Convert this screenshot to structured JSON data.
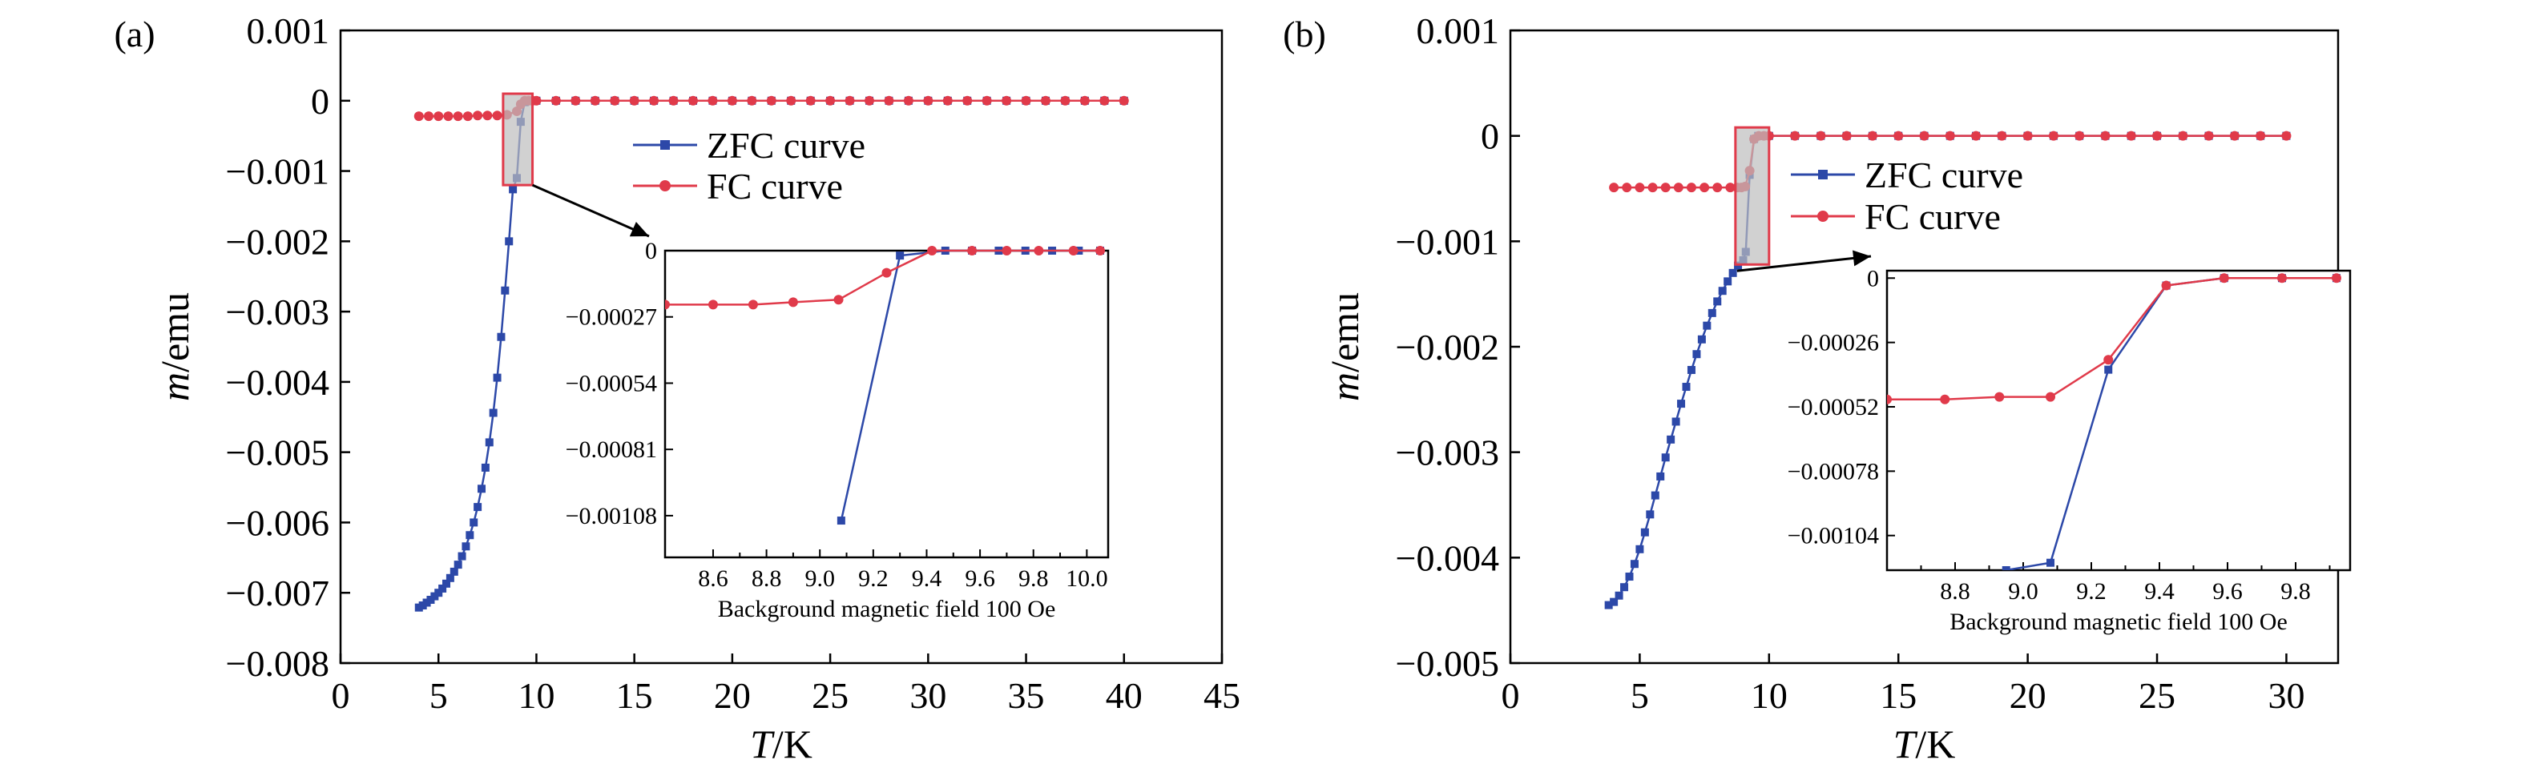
{
  "chart_data": [
    {
      "panel": "(a)",
      "type": "line",
      "xlabel_italic": "T",
      "xlabel_unit": "/K",
      "ylabel_italic": "m",
      "ylabel_unit": "/emu",
      "xlim": [
        0,
        45
      ],
      "ylim": [
        -0.008,
        0.001
      ],
      "xticks": [
        0,
        5,
        10,
        15,
        20,
        25,
        30,
        35,
        40,
        45
      ],
      "yticks": [
        0.001,
        0,
        -0.001,
        -0.002,
        -0.003,
        -0.004,
        -0.005,
        -0.006,
        -0.007,
        -0.008
      ],
      "ytick_labels": [
        "0.001",
        "0",
        "−0.001",
        "−0.002",
        "−0.003",
        "−0.004",
        "−0.005",
        "−0.006",
        "−0.007",
        "−0.008"
      ],
      "legend_position": "center-right",
      "highlight": {
        "x": [
          8.3,
          9.8
        ],
        "y": [
          -0.0012,
          0.0001
        ]
      },
      "series": [
        {
          "name": "ZFC curve",
          "color": "#2c48a8",
          "marker": "square",
          "x": [
            4.0,
            4.2,
            4.4,
            4.6,
            4.8,
            5.0,
            5.2,
            5.4,
            5.6,
            5.8,
            6.0,
            6.2,
            6.4,
            6.6,
            6.8,
            7.0,
            7.2,
            7.4,
            7.6,
            7.8,
            8.0,
            8.2,
            8.4,
            8.6,
            8.8,
            9.0,
            9.2,
            9.4,
            9.6,
            9.8,
            10.0,
            11,
            12,
            13,
            14,
            15,
            16,
            17,
            18,
            19,
            20,
            21,
            22,
            23,
            24,
            25,
            26,
            27,
            28,
            29,
            30,
            31,
            32,
            33,
            34,
            35,
            36,
            37,
            38,
            39,
            40
          ],
          "y": [
            -0.00721,
            -0.00718,
            -0.00714,
            -0.0071,
            -0.00705,
            -0.007,
            -0.00694,
            -0.00687,
            -0.00679,
            -0.0067,
            -0.0066,
            -0.00648,
            -0.00634,
            -0.00618,
            -0.006,
            -0.00578,
            -0.00552,
            -0.00522,
            -0.00486,
            -0.00444,
            -0.00394,
            -0.00336,
            -0.0027,
            -0.002,
            -0.00126,
            -0.0011,
            -0.0003,
            -2e-05,
            0.0,
            0.0,
            0.0,
            0.0,
            0.0,
            0.0,
            0.0,
            0.0,
            0.0,
            0.0,
            0.0,
            0.0,
            0.0,
            0.0,
            0.0,
            0.0,
            0.0,
            0.0,
            0.0,
            0.0,
            0.0,
            0.0,
            0.0,
            0.0,
            0.0,
            0.0,
            0.0,
            0.0,
            0.0,
            0.0,
            0.0,
            0.0,
            0.0
          ]
        },
        {
          "name": "FC curve",
          "color": "#e03a4a",
          "marker": "circle",
          "x": [
            4.0,
            4.5,
            5.0,
            5.5,
            6.0,
            6.5,
            7.0,
            7.5,
            8.0,
            8.5,
            9.0,
            9.2,
            9.4,
            9.6,
            9.8,
            10,
            11,
            12,
            13,
            14,
            15,
            16,
            17,
            18,
            19,
            20,
            21,
            22,
            23,
            24,
            25,
            26,
            27,
            28,
            29,
            30,
            31,
            32,
            33,
            34,
            35,
            36,
            37,
            38,
            39,
            40
          ],
          "y": [
            -0.00022,
            -0.00022,
            -0.00022,
            -0.00022,
            -0.00022,
            -0.00022,
            -0.00021,
            -0.00021,
            -0.00021,
            -0.0002,
            -0.00015,
            -5e-05,
            0.0,
            0.0,
            0.0,
            0.0,
            0.0,
            0.0,
            0.0,
            0.0,
            0.0,
            0.0,
            0.0,
            0.0,
            0.0,
            0.0,
            0.0,
            0.0,
            0.0,
            0.0,
            0.0,
            0.0,
            0.0,
            0.0,
            0.0,
            0.0,
            0.0,
            0.0,
            0.0,
            0.0,
            0.0,
            0.0,
            0.0,
            0.0,
            0.0,
            0.0
          ]
        }
      ],
      "inset": {
        "caption": "Background magnetic field 100 Oe",
        "xlim": [
          8.42,
          10.08
        ],
        "ylim": [
          -0.00125,
          0
        ],
        "xticks": [
          8.6,
          8.7,
          8.8,
          8.9,
          9.0,
          9.1,
          9.2,
          9.3,
          9.4,
          9.5,
          9.6,
          9.7,
          9.8,
          9.9,
          10.0
        ],
        "xtick_labels": [
          "8.6",
          "",
          "8.8",
          "",
          "9.0",
          "",
          "9.2",
          "",
          "9.4",
          "",
          "9.6",
          "",
          "9.8",
          "",
          "10.0"
        ],
        "yticks": [
          0,
          -0.00027,
          -0.00054,
          -0.00081,
          -0.00108
        ],
        "ytick_labels": [
          "0",
          "−0.00027",
          "−0.00054",
          "−0.00081",
          "−0.00108"
        ],
        "series": [
          {
            "name": "ZFC curve",
            "x": [
              9.08,
              9.3,
              9.47,
              9.57,
              9.67,
              9.77,
              9.87,
              9.97,
              10.05
            ],
            "y": [
              -0.0011,
              -2e-05,
              0.0,
              0.0,
              0.0,
              0.0,
              0.0,
              0.0,
              0.0
            ]
          },
          {
            "name": "FC curve",
            "x": [
              8.42,
              8.6,
              8.75,
              8.9,
              9.07,
              9.25,
              9.42,
              9.57,
              9.7,
              9.82,
              9.95,
              10.05
            ],
            "y": [
              -0.00022,
              -0.00022,
              -0.00022,
              -0.00021,
              -0.0002,
              -9e-05,
              0.0,
              0.0,
              0.0,
              0.0,
              0.0,
              0.0
            ]
          }
        ]
      }
    },
    {
      "panel": "(b)",
      "type": "line",
      "xlabel_italic": "T",
      "xlabel_unit": "/K",
      "ylabel_italic": "m",
      "ylabel_unit": "/emu",
      "xlim": [
        0,
        32
      ],
      "ylim": [
        -0.005,
        0.001
      ],
      "xticks": [
        0,
        5,
        10,
        15,
        20,
        25,
        30
      ],
      "yticks": [
        0.001,
        0,
        -0.001,
        -0.002,
        -0.003,
        -0.004,
        -0.005
      ],
      "ytick_labels": [
        "0.001",
        "0",
        "−0.001",
        "−0.002",
        "−0.003",
        "−0.004",
        "−0.005"
      ],
      "legend_position": "center-right",
      "highlight": {
        "x": [
          8.7,
          10.0
        ],
        "y": [
          -0.00122,
          8e-05
        ]
      },
      "series": [
        {
          "name": "ZFC curve",
          "color": "#2c48a8",
          "marker": "square",
          "x": [
            3.8,
            4.0,
            4.2,
            4.4,
            4.6,
            4.8,
            5.0,
            5.2,
            5.4,
            5.6,
            5.8,
            6.0,
            6.2,
            6.4,
            6.6,
            6.8,
            7.0,
            7.2,
            7.4,
            7.6,
            7.8,
            8.0,
            8.2,
            8.4,
            8.6,
            8.8,
            9.0,
            9.1,
            9.25,
            9.42,
            9.58,
            9.75,
            9.9,
            10,
            11,
            12,
            13,
            14,
            15,
            16,
            17,
            18,
            19,
            20,
            21,
            22,
            23,
            24,
            25,
            26,
            27,
            28,
            29,
            30
          ],
          "y": [
            -0.00445,
            -0.00442,
            -0.00436,
            -0.00428,
            -0.00418,
            -0.00406,
            -0.00392,
            -0.00376,
            -0.00359,
            -0.00341,
            -0.00323,
            -0.00305,
            -0.00288,
            -0.00271,
            -0.00254,
            -0.00238,
            -0.00222,
            -0.00207,
            -0.00193,
            -0.0018,
            -0.00168,
            -0.00157,
            -0.00147,
            -0.00138,
            -0.0013,
            -0.00123,
            -0.00118,
            -0.0011,
            -0.00037,
            -3e-05,
            0.0,
            0.0,
            0.0,
            0.0,
            0.0,
            0.0,
            0.0,
            0.0,
            0.0,
            0.0,
            0.0,
            0.0,
            0.0,
            0.0,
            0.0,
            0.0,
            0.0,
            0.0,
            0.0,
            0.0,
            0.0,
            0.0,
            0.0,
            0.0
          ]
        },
        {
          "name": "FC curve",
          "color": "#e03a4a",
          "marker": "circle",
          "x": [
            4.0,
            4.5,
            5.0,
            5.5,
            6.0,
            6.5,
            7.0,
            7.5,
            8.0,
            8.5,
            8.77,
            8.93,
            9.08,
            9.25,
            9.42,
            9.6,
            9.8,
            10,
            11,
            12,
            13,
            14,
            15,
            16,
            17,
            18,
            19,
            20,
            21,
            22,
            23,
            24,
            25,
            26,
            27,
            28,
            29,
            30
          ],
          "y": [
            -0.00049,
            -0.00049,
            -0.00049,
            -0.00049,
            -0.00049,
            -0.00049,
            -0.00049,
            -0.00049,
            -0.00049,
            -0.00049,
            -0.00049,
            -0.00049,
            -0.00048,
            -0.00033,
            -3e-05,
            0.0,
            0.0,
            0.0,
            0.0,
            0.0,
            0.0,
            0.0,
            0.0,
            0.0,
            0.0,
            0.0,
            0.0,
            0.0,
            0.0,
            0.0,
            0.0,
            0.0,
            0.0,
            0.0,
            0.0,
            0.0,
            0.0,
            0.0
          ]
        }
      ],
      "inset": {
        "caption": "Background magnetic field 100 Oe",
        "xlim": [
          8.6,
          9.96
        ],
        "ylim": [
          -0.00118,
          3e-05
        ],
        "xticks": [
          8.7,
          8.8,
          8.9,
          9.0,
          9.1,
          9.2,
          9.3,
          9.4,
          9.5,
          9.6,
          9.7,
          9.8,
          9.9
        ],
        "xtick_labels": [
          "",
          "8.8",
          "",
          "9.0",
          "",
          "9.2",
          "",
          "9.4",
          "",
          "9.6",
          "",
          "9.8",
          ""
        ],
        "yticks": [
          0,
          -0.00026,
          -0.00052,
          -0.00078,
          -0.00104
        ],
        "ytick_labels": [
          "0",
          "−0.00026",
          "−0.00052",
          "−0.00078",
          "−0.00104"
        ],
        "series": [
          {
            "name": "ZFC curve",
            "x": [
              8.95,
              9.08,
              9.25,
              9.42,
              9.59,
              9.76,
              9.92
            ],
            "y": [
              -0.00118,
              -0.00115,
              -0.00037,
              -3e-05,
              0.0,
              0.0,
              0.0
            ]
          },
          {
            "name": "FC curve",
            "x": [
              8.6,
              8.77,
              8.93,
              9.08,
              9.25,
              9.42,
              9.59,
              9.76,
              9.92
            ],
            "y": [
              -0.00049,
              -0.00049,
              -0.00048,
              -0.00048,
              -0.00033,
              -3e-05,
              0.0,
              0.0,
              0.0
            ]
          }
        ]
      }
    }
  ]
}
